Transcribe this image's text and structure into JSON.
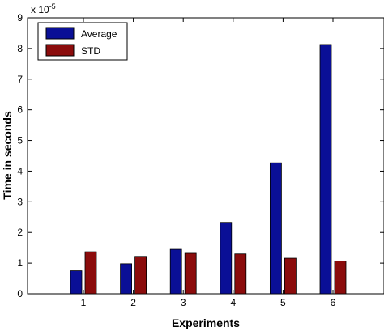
{
  "chart_data": {
    "type": "bar",
    "categories": [
      "1",
      "2",
      "3",
      "4",
      "5",
      "6"
    ],
    "series": [
      {
        "name": "Average",
        "values": [
          0.75,
          0.98,
          1.45,
          2.33,
          4.27,
          8.13
        ],
        "color": "#0a0f96"
      },
      {
        "name": "STD",
        "values": [
          1.37,
          1.22,
          1.32,
          1.3,
          1.16,
          1.07
        ],
        "color": "#8b0c0c"
      }
    ],
    "scale_label_base": "x 10",
    "scale_label_exp": "-5",
    "xlabel": "Experiments",
    "ylabel": "Time in seconds",
    "ylim": [
      0,
      9
    ],
    "yticks": [
      "0",
      "1",
      "2",
      "3",
      "4",
      "5",
      "6",
      "7",
      "8",
      "9"
    ],
    "legend_position": "top-left",
    "grid": false
  }
}
